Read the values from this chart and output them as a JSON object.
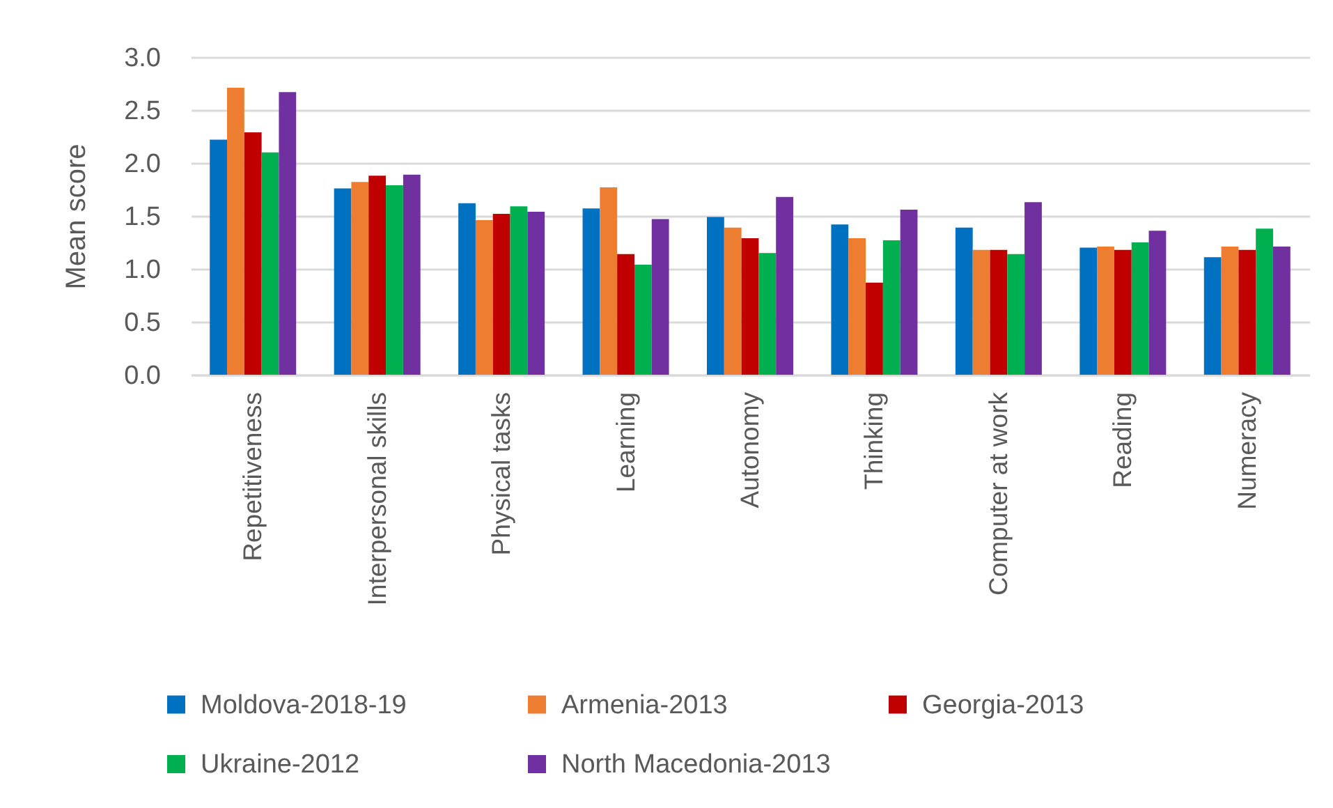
{
  "chart_data": {
    "type": "bar",
    "ylabel": "Mean score",
    "categories": [
      "Repetitiveness",
      "Interpersonal skills",
      "Physical tasks",
      "Learning",
      "Autonomy",
      "Thinking",
      "Computer at work",
      "Reading",
      "Numeracy"
    ],
    "series": [
      {
        "name": "Moldova-2018-19",
        "color": "#0070c0",
        "values": [
          2.22,
          1.76,
          1.62,
          1.57,
          1.49,
          1.42,
          1.39,
          1.2,
          1.11
        ]
      },
      {
        "name": "Armenia-2013",
        "color": "#ed7d31",
        "values": [
          2.71,
          1.82,
          1.46,
          1.77,
          1.39,
          1.29,
          1.18,
          1.21,
          1.21
        ]
      },
      {
        "name": "Georgia-2013",
        "color": "#c00000",
        "values": [
          2.29,
          1.88,
          1.52,
          1.14,
          1.29,
          0.87,
          1.18,
          1.18,
          1.18
        ]
      },
      {
        "name": "Ukraine-2012",
        "color": "#00b050",
        "values": [
          2.1,
          1.79,
          1.59,
          1.04,
          1.15,
          1.27,
          1.14,
          1.25,
          1.38
        ]
      },
      {
        "name": "North Macedonia-2013",
        "color": "#7030a0",
        "values": [
          2.67,
          1.89,
          1.54,
          1.47,
          1.68,
          1.56,
          1.63,
          1.36,
          1.21
        ]
      }
    ],
    "ylim": [
      0,
      3
    ],
    "yticks": [
      {
        "value": 0,
        "label": "0.0"
      },
      0.5,
      {
        "value": 1,
        "label": "1.0"
      },
      1.5,
      {
        "value": 2,
        "label": "2.0"
      },
      2.5,
      {
        "value": 3,
        "label": "3.0"
      }
    ],
    "grid": "y",
    "legend": "bottom"
  }
}
